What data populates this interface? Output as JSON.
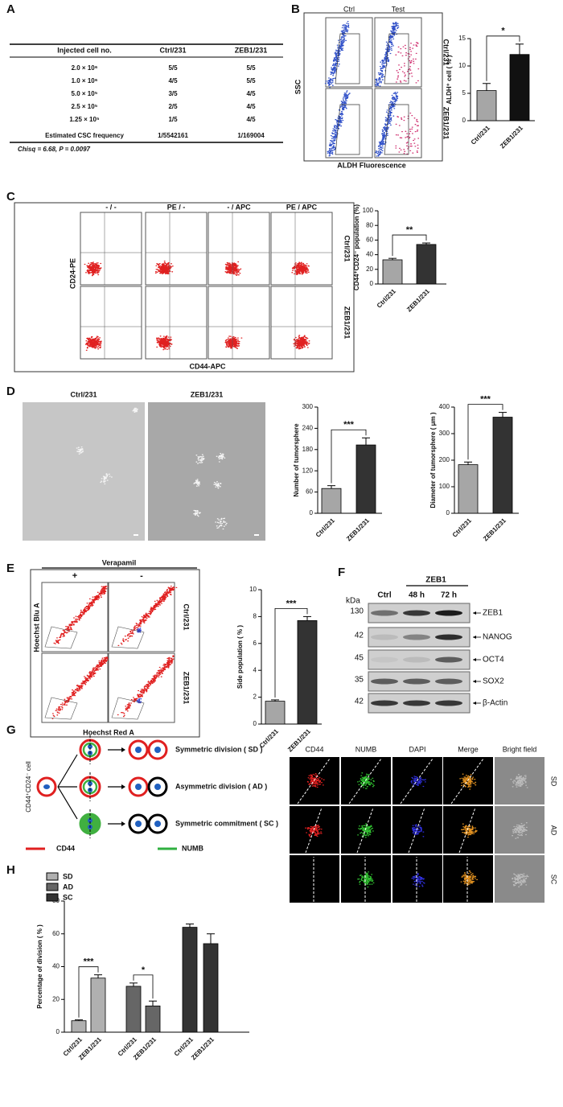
{
  "panel_labels": [
    "A",
    "B",
    "C",
    "D",
    "E",
    "F",
    "G",
    "H"
  ],
  "table": {
    "header": [
      "Injected cell no.",
      "Ctrl/231",
      "ZEB1/231"
    ],
    "rows": [
      [
        "2.0 × 10⁶",
        "5/5",
        "5/5"
      ],
      [
        "1.0 × 10⁶",
        "4/5",
        "5/5"
      ],
      [
        "5.0 × 10⁵",
        "3/5",
        "4/5"
      ],
      [
        "2.5 × 10⁵",
        "2/5",
        "4/5"
      ],
      [
        "1.25 × 10⁵",
        "1/5",
        "4/5"
      ],
      [
        "Estimated CSC frequency",
        "1/5542161",
        "1/169004"
      ]
    ],
    "note": "Chisq = 6.68, P = 0.0097"
  },
  "flow_B": {
    "columns": [
      "Ctrl",
      "Test"
    ],
    "rows": [
      "Ctrl/231",
      "ZEB1/231"
    ],
    "y_label": "SSC",
    "x_label": "ALDH Fluorescence"
  },
  "flow_C": {
    "columns": [
      "- / -",
      "PE / -",
      "- / APC",
      "PE / APC"
    ],
    "rows": [
      "Ctrl/231",
      "ZEB1/231"
    ],
    "y_label": "CD24-PE",
    "x_label": "CD44-APC"
  },
  "images_D": {
    "columns": [
      "Ctrl/231",
      "ZEB1/231"
    ]
  },
  "flow_E": {
    "title": "Verapamil",
    "columns": [
      "+",
      "-"
    ],
    "rows": [
      "Ctrl/231",
      "ZEB1/231"
    ],
    "y_label": "Hoechst Blu A",
    "x_label": "Hoechst Red A"
  },
  "blot_F": {
    "unit": "kDa",
    "group": "ZEB1",
    "lanes": [
      "Ctrl",
      "48 h",
      "72 h"
    ],
    "bands": [
      {
        "kda": 130,
        "protein": "ZEB1"
      },
      {
        "kda": 42,
        "protein": "NANOG"
      },
      {
        "kda": 45,
        "protein": "OCT4"
      },
      {
        "kda": 35,
        "protein": "SOX2"
      },
      {
        "kda": 42,
        "protein": "β-Actin"
      }
    ]
  },
  "diagram_G": {
    "cell": "CD44⁺CD24⁻ cell",
    "outcomes": [
      "Symmetric division ( SD )",
      "Asymmetric division ( AD )",
      "Symmetric commitment ( SC )"
    ],
    "legend": [
      "CD44",
      "NUMB"
    ]
  },
  "micrographs_G": {
    "columns": [
      "CD44",
      "NUMB",
      "DAPI",
      "Merge",
      "Bright field"
    ],
    "rows": [
      "SD",
      "AD",
      "SC"
    ]
  },
  "chart_data": [
    {
      "type": "bar",
      "y_label": "ALDH⁺ cell ( % )",
      "categories": [
        "Ctrl/231",
        "ZEB1/231"
      ],
      "values": [
        5.5,
        12.1
      ],
      "errors": [
        1.3,
        1.9
      ],
      "colors": [
        "#a6a6a6",
        "#111111"
      ],
      "ylim": [
        0,
        15
      ],
      "yticks": [
        0,
        5,
        10,
        15
      ],
      "significance": "*"
    },
    {
      "type": "bar",
      "y_label": "CD44⁺CD24⁻ population (%)",
      "categories": [
        "Ctrl/231",
        "ZEB1/231"
      ],
      "values": [
        33,
        54
      ],
      "errors": [
        2,
        2
      ],
      "colors": [
        "#a6a6a6",
        "#333333"
      ],
      "ylim": [
        0,
        100
      ],
      "yticks": [
        0,
        20,
        40,
        60,
        80,
        100
      ],
      "significance": "**"
    },
    {
      "type": "bar",
      "y_label": "Number of tumorsphere",
      "categories": [
        "Ctrl/231",
        "ZEB1/231"
      ],
      "values": [
        70,
        193
      ],
      "errors": [
        8,
        20
      ],
      "colors": [
        "#a6a6a6",
        "#333333"
      ],
      "ylim": [
        0,
        300
      ],
      "yticks": [
        0,
        60,
        120,
        180,
        240,
        300
      ],
      "significance": "***"
    },
    {
      "type": "bar",
      "y_label": "Diameter of tumorsphere ( μm )",
      "categories": [
        "Ctrl/231",
        "ZEB1/231"
      ],
      "values": [
        183,
        362
      ],
      "errors": [
        10,
        18
      ],
      "colors": [
        "#a6a6a6",
        "#333333"
      ],
      "ylim": [
        0,
        400
      ],
      "yticks": [
        0,
        100,
        200,
        300,
        400
      ],
      "significance": "***"
    },
    {
      "type": "bar",
      "y_label": "Side population ( % )",
      "categories": [
        "Ctrl/231",
        "ZEB1/231"
      ],
      "values": [
        1.7,
        7.7
      ],
      "errors": [
        0.1,
        0.3
      ],
      "colors": [
        "#a6a6a6",
        "#333333"
      ],
      "ylim": [
        0,
        10
      ],
      "yticks": [
        0,
        2,
        4,
        6,
        8,
        10
      ],
      "significance": "***"
    },
    {
      "type": "bar",
      "y_label": "Percentage of division ( % )",
      "categories": [
        "Ctrl/231",
        "ZEB1/231"
      ],
      "ylim": [
        0,
        80
      ],
      "yticks": [
        0,
        20,
        40,
        60,
        80
      ],
      "series": [
        {
          "name": "SD",
          "color": "#b0b0b0",
          "values": [
            7,
            33
          ],
          "errors": [
            0.5,
            2
          ],
          "significance": "***"
        },
        {
          "name": "AD",
          "color": "#666666",
          "values": [
            28,
            16
          ],
          "errors": [
            2,
            3
          ],
          "significance": "*"
        },
        {
          "name": "SC",
          "color": "#333333",
          "values": [
            64,
            54
          ],
          "errors": [
            2,
            6
          ]
        }
      ]
    }
  ]
}
